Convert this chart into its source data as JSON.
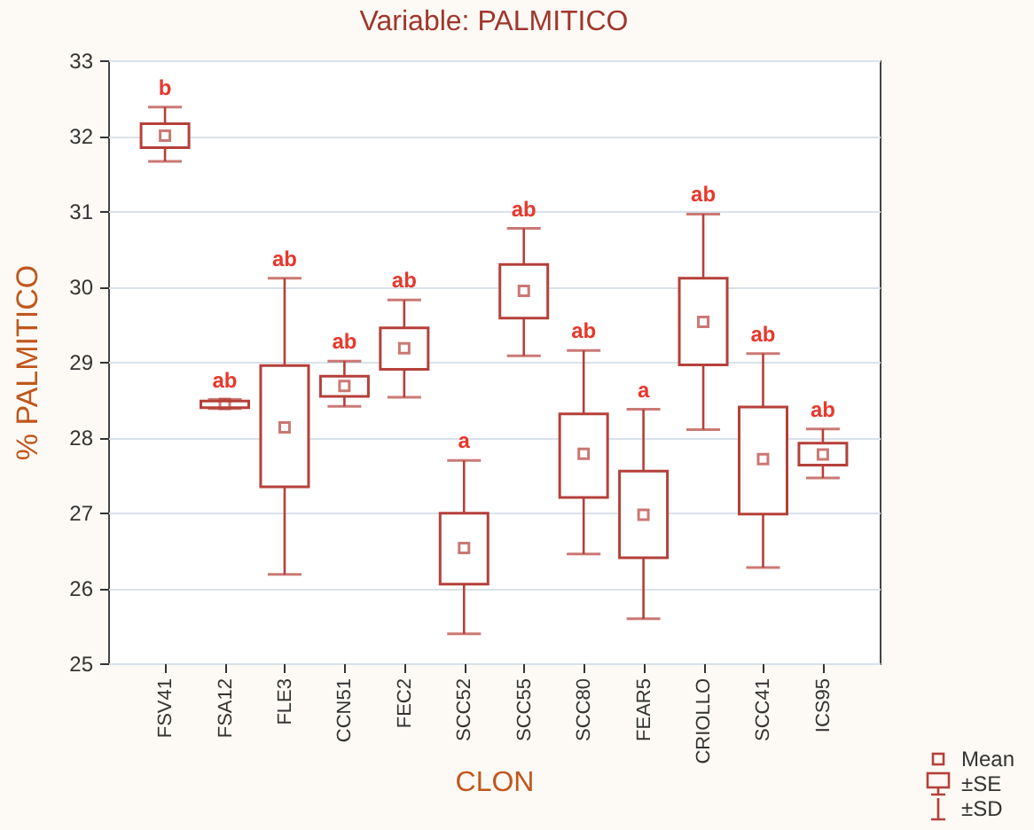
{
  "chart_data": {
    "type": "box",
    "title": "Variable: PALMITICO",
    "xlabel": "CLON",
    "ylabel": "% PALMITICO",
    "categories": [
      "FSV41",
      "FSA12",
      "FLE3",
      "CCN51",
      "FEC2",
      "SCC52",
      "SCC55",
      "SCC80",
      "FEAR5",
      "CRIOLLO",
      "SCC41",
      "ICS95"
    ],
    "series": [
      {
        "color": "#b5403a",
        "boxes": [
          {
            "low": 31.66,
            "q1": 31.84,
            "q3": 32.16,
            "high": 32.38,
            "mean": 32.0
          },
          {
            "low": 28.38,
            "q1": 28.39,
            "q3": 28.48,
            "high": 28.5,
            "mean": 28.44
          },
          {
            "low": 26.18,
            "q1": 27.34,
            "q3": 28.95,
            "high": 30.11,
            "mean": 28.13
          },
          {
            "low": 28.41,
            "q1": 28.54,
            "q3": 28.81,
            "high": 29.01,
            "mean": 28.68
          },
          {
            "low": 28.53,
            "q1": 28.9,
            "q3": 29.45,
            "high": 29.82,
            "mean": 29.18
          },
          {
            "low": 25.39,
            "q1": 26.05,
            "q3": 26.99,
            "high": 27.69,
            "mean": 26.53
          },
          {
            "low": 29.08,
            "q1": 29.58,
            "q3": 30.29,
            "high": 30.77,
            "mean": 29.94
          },
          {
            "low": 26.45,
            "q1": 27.2,
            "q3": 28.31,
            "high": 29.15,
            "mean": 27.78
          },
          {
            "low": 25.59,
            "q1": 26.4,
            "q3": 27.55,
            "high": 28.37,
            "mean": 26.97
          },
          {
            "low": 28.1,
            "q1": 28.96,
            "q3": 30.11,
            "high": 30.96,
            "mean": 29.53
          },
          {
            "low": 26.27,
            "q1": 26.98,
            "q3": 28.4,
            "high": 29.11,
            "mean": 27.71
          },
          {
            "low": 27.46,
            "q1": 27.63,
            "q3": 27.92,
            "high": 28.11,
            "mean": 27.77
          }
        ]
      }
    ],
    "ylim": [
      25,
      33
    ],
    "yticks": [
      25,
      26,
      27,
      28,
      29,
      30,
      31,
      32,
      33
    ],
    "grid": "y",
    "annotations": [
      {
        "text": "b",
        "x": "FSV41",
        "y": 32.38
      },
      {
        "text": "ab",
        "x": "FSA12",
        "y": 28.5
      },
      {
        "text": "ab",
        "x": "FLE3",
        "y": 30.11
      },
      {
        "text": "ab",
        "x": "CCN51",
        "y": 29.01
      },
      {
        "text": "ab",
        "x": "FEC2",
        "y": 29.82
      },
      {
        "text": "a",
        "x": "SCC52",
        "y": 27.69
      },
      {
        "text": "ab",
        "x": "SCC55",
        "y": 30.77
      },
      {
        "text": "ab",
        "x": "SCC80",
        "y": 29.15
      },
      {
        "text": "a",
        "x": "FEAR5",
        "y": 28.37
      },
      {
        "text": "ab",
        "x": "CRIOLLO",
        "y": 30.96
      },
      {
        "text": "ab",
        "x": "SCC41",
        "y": 29.11
      },
      {
        "text": "ab",
        "x": "ICS95",
        "y": 28.11
      },
      "Mean",
      "±SE",
      "±SD"
    ]
  }
}
